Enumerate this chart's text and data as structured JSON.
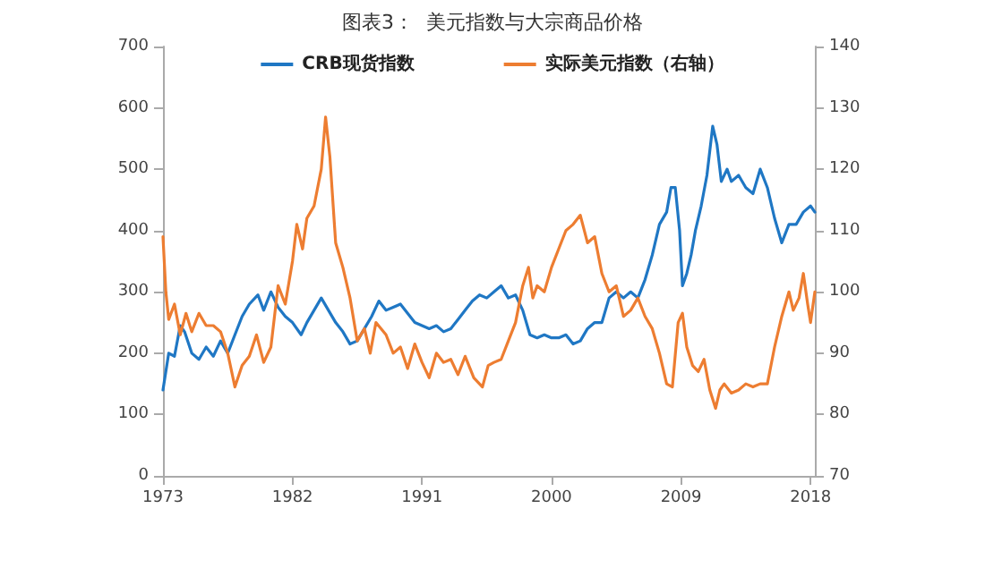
{
  "chart_data": {
    "type": "line",
    "title": "图表3：  美元指数与大宗商品价格",
    "legend": "top",
    "grid": false,
    "marker": "none",
    "line_style": "solid",
    "xlim": [
      1973,
      2018.3
    ],
    "xticks": [
      1973,
      1982,
      1991,
      2000,
      2009,
      2018
    ],
    "ylim": [
      0,
      700
    ],
    "yticks": [
      0,
      100,
      200,
      300,
      400,
      500,
      600,
      700
    ],
    "y2lim": [
      70,
      140
    ],
    "y2ticks": [
      70,
      80,
      90,
      100,
      110,
      120,
      130,
      140
    ],
    "series": [
      {
        "name": "CRB现货指数",
        "color": "#1f77c4",
        "x": [
          1973,
          1973.4,
          1973.8,
          1974.2,
          1974.5,
          1975,
          1975.5,
          1976,
          1976.5,
          1977,
          1977.5,
          1978,
          1978.5,
          1979,
          1979.6,
          1980,
          1980.5,
          1981,
          1981.5,
          1982,
          1982.6,
          1983,
          1983.5,
          1984,
          1984.5,
          1985,
          1985.5,
          1986,
          1986.5,
          1987,
          1987.5,
          1988,
          1988.5,
          1989,
          1989.5,
          1990,
          1990.5,
          1991,
          1991.5,
          1992,
          1992.5,
          1993,
          1993.5,
          1994,
          1994.5,
          1995,
          1995.5,
          1996,
          1996.5,
          1997,
          1997.5,
          1998,
          1998.5,
          1999,
          1999.5,
          2000,
          2000.5,
          2001,
          2001.5,
          2002,
          2002.5,
          2003,
          2003.5,
          2004,
          2004.5,
          2005,
          2005.5,
          2006,
          2006.5,
          2007,
          2007.5,
          2008,
          2008.3,
          2008.6,
          2008.9,
          2009.1,
          2009.4,
          2009.7,
          2010,
          2010.4,
          2010.8,
          2011.2,
          2011.5,
          2011.8,
          2012.2,
          2012.5,
          2013,
          2013.5,
          2014,
          2014.5,
          2015,
          2015.5,
          2016,
          2016.5,
          2017,
          2017.5,
          2018,
          2018.3
        ],
        "values": [
          140,
          200,
          195,
          245,
          235,
          200,
          190,
          210,
          195,
          220,
          200,
          230,
          260,
          280,
          295,
          270,
          300,
          275,
          260,
          250,
          230,
          250,
          270,
          290,
          270,
          250,
          235,
          215,
          220,
          240,
          260,
          285,
          270,
          275,
          280,
          265,
          250,
          245,
          240,
          245,
          235,
          240,
          255,
          270,
          285,
          295,
          290,
          300,
          310,
          290,
          295,
          270,
          230,
          225,
          230,
          225,
          225,
          230,
          215,
          220,
          240,
          250,
          250,
          290,
          300,
          290,
          300,
          290,
          320,
          360,
          410,
          430,
          470,
          470,
          400,
          310,
          330,
          360,
          400,
          440,
          490,
          570,
          540,
          480,
          500,
          480,
          490,
          470,
          460,
          500,
          470,
          420,
          380,
          410,
          410,
          430,
          440,
          430
        ]
      },
      {
        "name": "实际美元指数（右轴）",
        "color": "#ed7d31",
        "axis": "y2",
        "x": [
          1973,
          1973.2,
          1973.4,
          1973.8,
          1974.2,
          1974.6,
          1975,
          1975.5,
          1976,
          1976.5,
          1977,
          1977.5,
          1978,
          1978.5,
          1979,
          1979.5,
          1980,
          1980.5,
          1981,
          1981.5,
          1982,
          1982.3,
          1982.7,
          1983,
          1983.5,
          1984,
          1984.3,
          1984.6,
          1985,
          1985.5,
          1986,
          1986.5,
          1987,
          1987.4,
          1987.8,
          1988.5,
          1989,
          1989.5,
          1990,
          1990.5,
          1991,
          1991.5,
          1992,
          1992.5,
          1993,
          1993.5,
          1994,
          1994.6,
          1995.2,
          1995.6,
          1996,
          1996.5,
          1997,
          1997.5,
          1998,
          1998.4,
          1998.7,
          1999,
          1999.5,
          2000,
          2000.5,
          2001,
          2001.5,
          2002,
          2002.5,
          2003,
          2003.5,
          2004,
          2004.5,
          2005,
          2005.5,
          2006,
          2006.5,
          2007,
          2007.5,
          2008,
          2008.4,
          2008.8,
          2009.1,
          2009.4,
          2009.8,
          2010.2,
          2010.6,
          2011,
          2011.4,
          2011.7,
          2012,
          2012.5,
          2013,
          2013.5,
          2014,
          2014.5,
          2015,
          2015.5,
          2016,
          2016.5,
          2016.8,
          2017.2,
          2017.5,
          2017.8,
          2018,
          2018.3
        ],
        "values": [
          109,
          100,
          95.5,
          98,
          93,
          96.5,
          93.5,
          96.5,
          94.5,
          94.5,
          93.5,
          90,
          84.5,
          88,
          89.5,
          93,
          88.5,
          91,
          101,
          98,
          105,
          111,
          107,
          112,
          114,
          120,
          128.5,
          122,
          108,
          104,
          99,
          92,
          94,
          90,
          95,
          93,
          90,
          91,
          87.5,
          91.5,
          88.5,
          86,
          90,
          88.5,
          89,
          86.5,
          89.5,
          86,
          84.5,
          88,
          88.5,
          89,
          92,
          95,
          101,
          104,
          99,
          101,
          100,
          104,
          107,
          110,
          111,
          112.5,
          108,
          109,
          103,
          100,
          101,
          96,
          97,
          99,
          96,
          94,
          90,
          85,
          84.5,
          95,
          96.5,
          91,
          88,
          87,
          89,
          84,
          81,
          84,
          85,
          83.5,
          84,
          85,
          84.5,
          85,
          85,
          91,
          96,
          100,
          97,
          99,
          103,
          98,
          95,
          100
        ]
      }
    ]
  }
}
